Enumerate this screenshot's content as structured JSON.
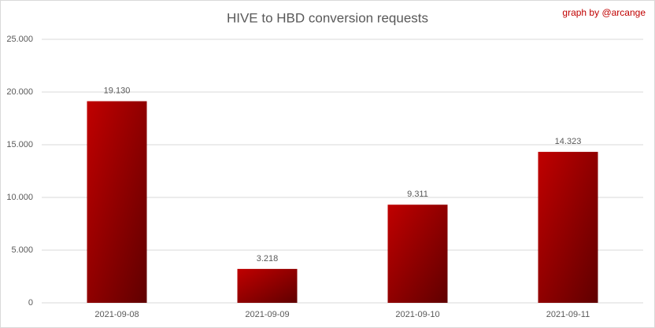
{
  "chart_data": {
    "type": "bar",
    "title": "HIVE to HBD conversion requests",
    "annotation": "graph by @arcange",
    "categories": [
      "2021-09-08",
      "2021-09-09",
      "2021-09-10",
      "2021-09-11"
    ],
    "values": [
      19130,
      3218,
      9311,
      14323
    ],
    "value_labels": [
      "19.130",
      "3.218",
      "9.311",
      "14.323"
    ],
    "color": "#c00000",
    "ylim": [
      0,
      25000
    ],
    "yticks": [
      0,
      {
        "value": 5000,
        "label": "5.000"
      },
      {
        "value": 10000,
        "label": "10.000"
      },
      {
        "value": 15000,
        "label": "15.000"
      },
      {
        "value": 20000,
        "label": "20.000"
      },
      {
        "value": 25000,
        "label": "25.000"
      }
    ],
    "grid": true
  }
}
